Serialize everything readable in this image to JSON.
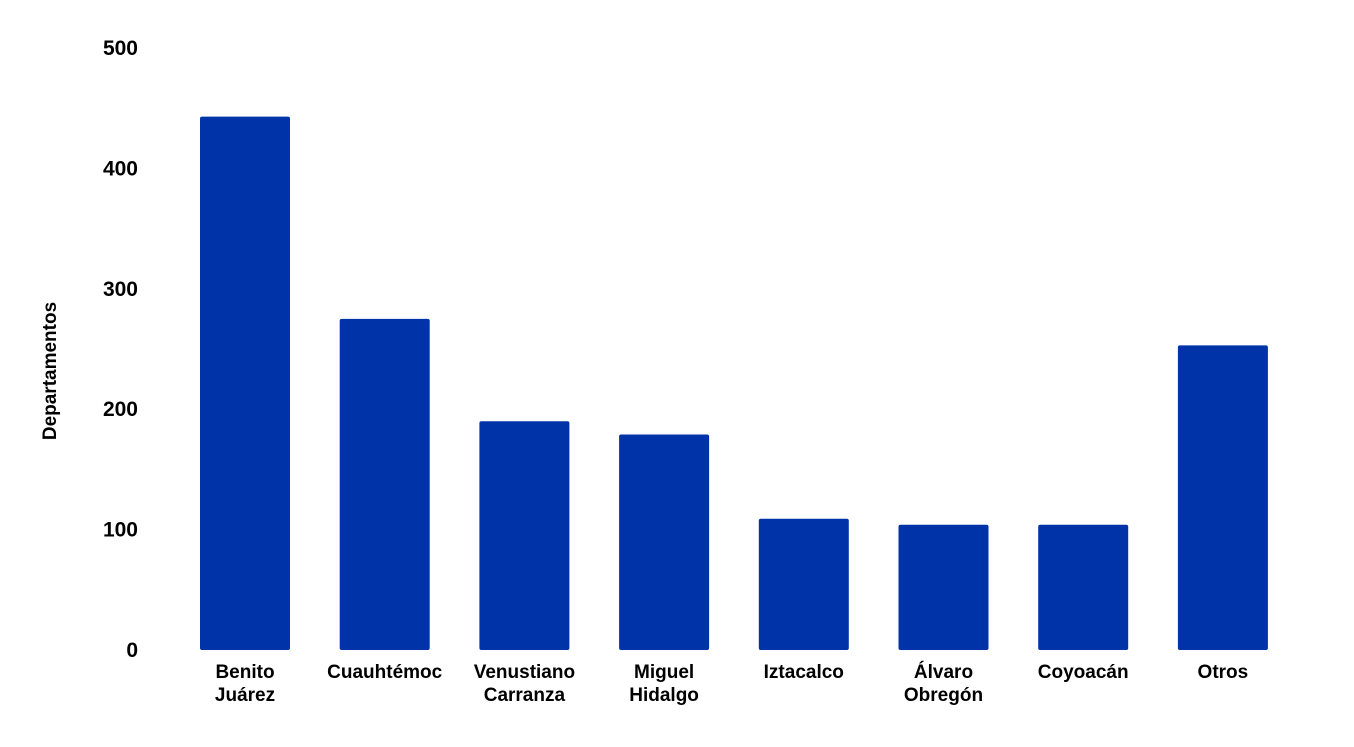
{
  "chart_data": {
    "type": "bar",
    "title": "",
    "xlabel": "",
    "ylabel": "Departamentos",
    "ylim": [
      0,
      500
    ],
    "yticks": [
      0,
      100,
      200,
      300,
      400,
      500
    ],
    "grid": false,
    "legend": "none",
    "bar_color": "#0033a8",
    "categories": [
      [
        "Benito",
        "Juárez"
      ],
      [
        "Cuauhtémoc"
      ],
      [
        "Venustiano",
        "Carranza"
      ],
      [
        "Miguel",
        "Hidalgo"
      ],
      [
        "Iztacalco"
      ],
      [
        "Álvaro",
        "Obregón"
      ],
      [
        "Coyoacán"
      ],
      [
        "Otros"
      ]
    ],
    "values": [
      443,
      275,
      190,
      179,
      109,
      104,
      104,
      253
    ]
  }
}
